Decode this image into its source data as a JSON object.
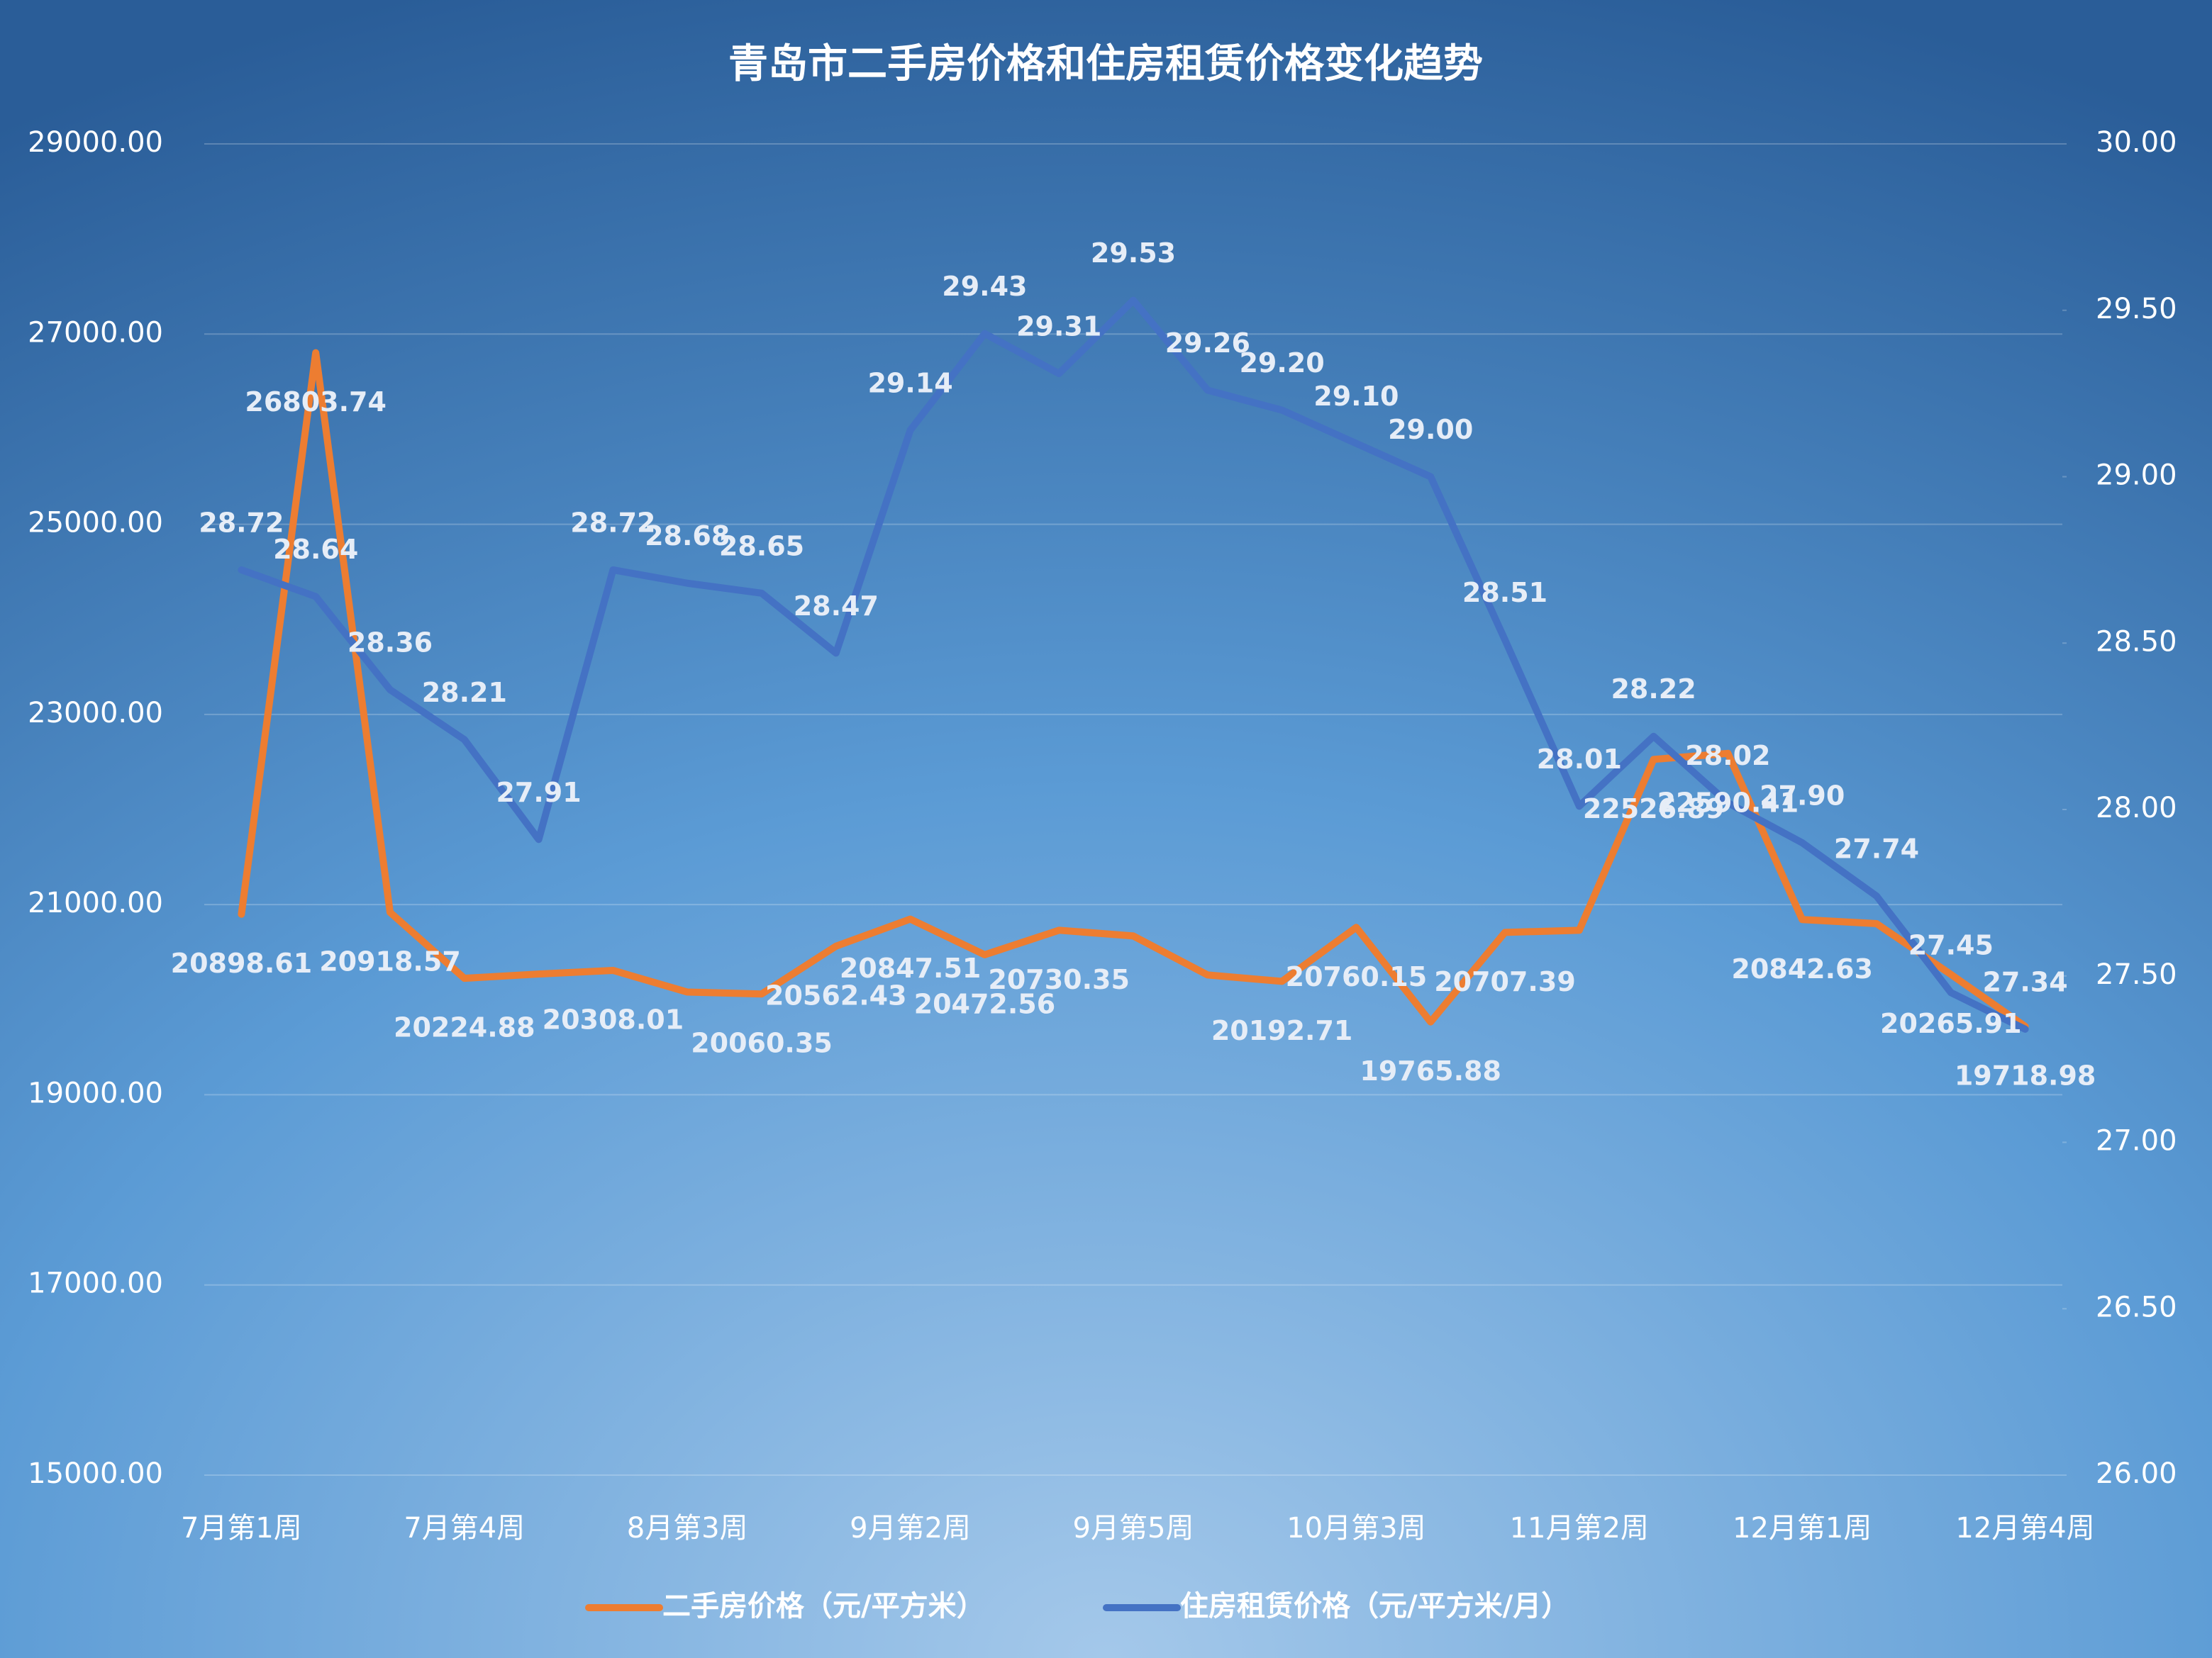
{
  "chart_data": {
    "type": "line",
    "title": "青岛市二手房价格和住房租赁价格变化趋势",
    "categories": [
      "7月第1周",
      null,
      null,
      "7月第4周",
      null,
      null,
      "8月第3周",
      null,
      null,
      "9月第2周",
      null,
      null,
      "9月第5周",
      null,
      null,
      "10月第3周",
      null,
      null,
      "11月第2周",
      null,
      null,
      "12月第1周",
      null,
      null,
      "12月第4周"
    ],
    "series": [
      {
        "name": "二手房价格（元/平方米）",
        "color": "#ed7d31",
        "values": [
          20898.61,
          26803.74,
          20918.57,
          20224.88,
          20270,
          20308.01,
          20080,
          20060.35,
          20562.43,
          20847.51,
          20472.56,
          20730.35,
          20670,
          20260,
          20192.71,
          20760.15,
          19765.88,
          20707.39,
          20730,
          22526.89,
          22590.41,
          20842.63,
          20800,
          20265.91,
          19718.98
        ],
        "value_labels": [
          "20898.61",
          "26803.74",
          "20918.57",
          "20224.88",
          null,
          "20308.01",
          null,
          "20060.35",
          "20562.43",
          "20847.51",
          "20472.56",
          "20730.35",
          null,
          null,
          "20192.71",
          "20760.15",
          "19765.88",
          "20707.39",
          null,
          "22526.89",
          "22590.41",
          "20842.63",
          null,
          "20265.91",
          "19718.98"
        ]
      },
      {
        "name": "住房租赁价格（元/平方米/月）",
        "color": "#4472c4",
        "axis": "y2",
        "values": [
          28.72,
          28.64,
          28.36,
          28.21,
          27.91,
          28.72,
          28.68,
          28.65,
          28.47,
          29.14,
          29.43,
          29.31,
          29.53,
          29.26,
          29.2,
          29.1,
          29.0,
          28.51,
          28.01,
          28.22,
          28.02,
          27.9,
          27.74,
          27.45,
          27.34
        ],
        "value_labels": [
          "28.72",
          "28.64",
          "28.36",
          "28.21",
          "27.91",
          "28.72",
          "28.68",
          "28.65",
          "28.47",
          "29.14",
          "29.43",
          "29.31",
          "29.53",
          "29.26",
          "29.20",
          "29.10",
          "29.00",
          "28.51",
          "28.01",
          "28.22",
          "28.02",
          "27.90",
          "27.74",
          "27.45",
          "27.34"
        ]
      }
    ],
    "ylim": [
      15000,
      29000
    ],
    "yticks": [
      {
        "value": 15000,
        "label": "15000.00"
      },
      {
        "value": 17000,
        "label": "17000.00"
      },
      {
        "value": 19000,
        "label": "19000.00"
      },
      {
        "value": 21000,
        "label": "21000.00"
      },
      {
        "value": 23000,
        "label": "23000.00"
      },
      {
        "value": 25000,
        "label": "25000.00"
      },
      {
        "value": 27000,
        "label": "27000.00"
      },
      {
        "value": 29000,
        "label": "29000.00"
      }
    ],
    "y2lim": [
      26,
      30
    ],
    "y2ticks": [
      {
        "value": 26,
        "label": "26.00"
      },
      {
        "value": 26.5,
        "label": "26.50"
      },
      {
        "value": 27,
        "label": "27.00"
      },
      {
        "value": 27.5,
        "label": "27.50"
      },
      {
        "value": 28,
        "label": "28.00"
      },
      {
        "value": 28.5,
        "label": "28.50"
      },
      {
        "value": 29,
        "label": "29.00"
      },
      {
        "value": 29.5,
        "label": "29.50"
      },
      {
        "value": 30,
        "label": "30.00"
      }
    ],
    "grid": true,
    "legend": "bottom"
  }
}
